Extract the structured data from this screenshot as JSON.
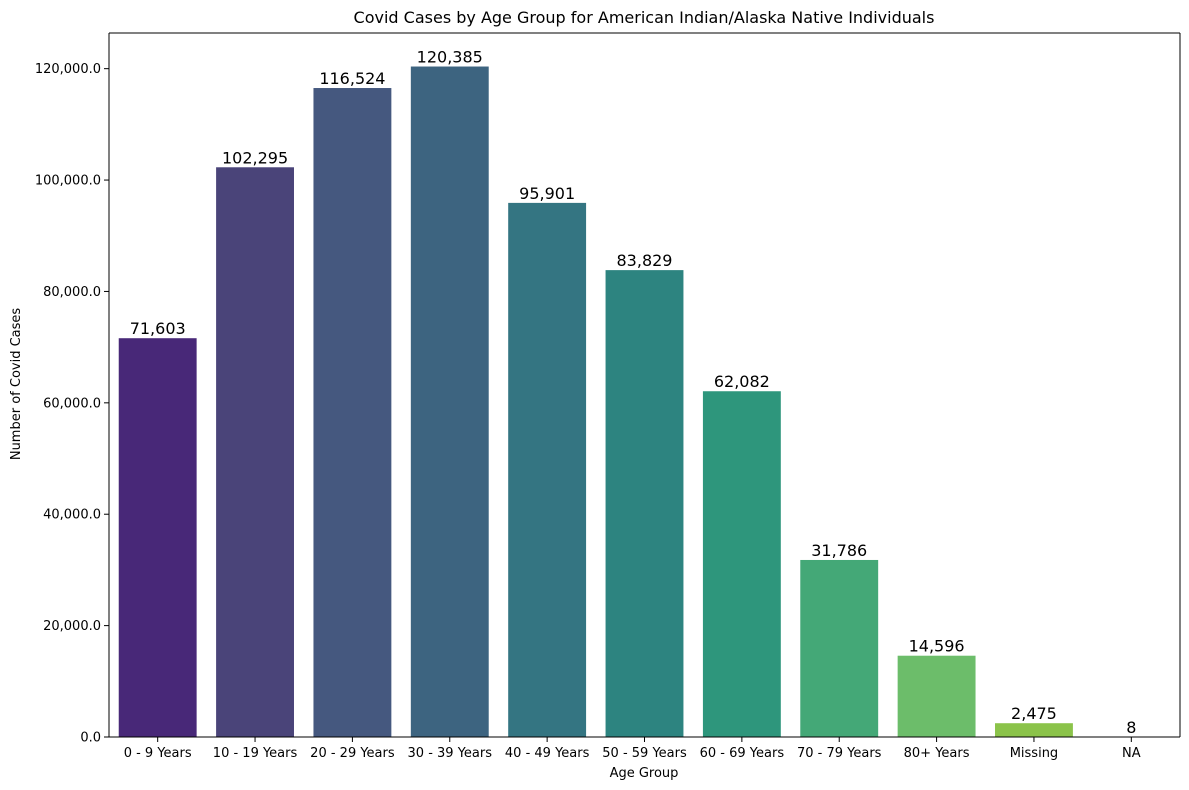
{
  "chart_data": {
    "type": "bar",
    "title": "Covid Cases by Age Group for American Indian/Alaska Native Individuals",
    "xlabel": "Age Group",
    "ylabel": "Number of Covid Cases",
    "categories": [
      "0 - 9 Years",
      "10 - 19 Years",
      "20 - 29 Years",
      "30 - 39 Years",
      "40 - 49 Years",
      "50 - 59 Years",
      "60 - 69 Years",
      "70 - 79 Years",
      "80+ Years",
      "Missing",
      "NA"
    ],
    "values": [
      71603,
      102295,
      116524,
      120385,
      95901,
      83829,
      62082,
      31786,
      14596,
      2475,
      8
    ],
    "data_labels": [
      "71,603",
      "102,295",
      "116,524",
      "120,385",
      "95,901",
      "83,829",
      "62,082",
      "31,786",
      "14,596",
      "2,475",
      "8"
    ],
    "yticks": [
      0,
      20000,
      40000,
      60000,
      80000,
      100000,
      120000
    ],
    "ytick_labels": [
      "0.0",
      "20,000.0",
      "40,000.0",
      "60,000.0",
      "80,000.0",
      "100,000.0",
      "120,000.0"
    ],
    "ylim": [
      0,
      126404
    ],
    "grid": false,
    "legend": "none",
    "colors": [
      "#482878",
      "#4a4479",
      "#45587f",
      "#3d6480",
      "#347582",
      "#2d8480",
      "#2e967c",
      "#44a877",
      "#6cbd6a",
      "#8bc34a",
      "#d9e21f"
    ]
  }
}
